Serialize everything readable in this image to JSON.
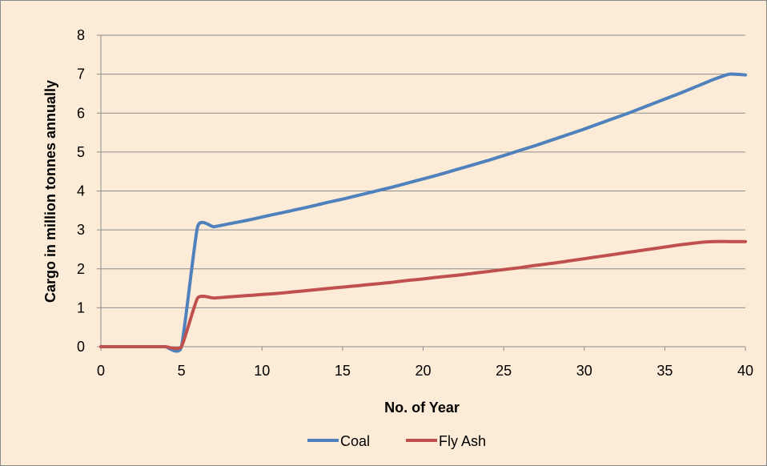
{
  "chart_data": {
    "type": "line",
    "xlabel": "No. of Year",
    "ylabel": "Cargo in million tonnes annually",
    "xlim": [
      0,
      40
    ],
    "ylim": [
      0,
      8
    ],
    "x_ticks": [
      0,
      5,
      10,
      15,
      20,
      25,
      30,
      35,
      40
    ],
    "y_ticks": [
      0,
      1,
      2,
      3,
      4,
      5,
      6,
      7,
      8
    ],
    "grid": "horizontal",
    "legend_position": "bottom",
    "series": [
      {
        "name": "Coal",
        "color": "#4f81bd",
        "points": [
          [
            0,
            0
          ],
          [
            1,
            0
          ],
          [
            2,
            0
          ],
          [
            3,
            0
          ],
          [
            4,
            0
          ],
          [
            5,
            0
          ],
          [
            6,
            3.08
          ],
          [
            7,
            3.08
          ],
          [
            8,
            3.16
          ],
          [
            9,
            3.24
          ],
          [
            10,
            3.33
          ],
          [
            11,
            3.42
          ],
          [
            12,
            3.51
          ],
          [
            13,
            3.6
          ],
          [
            14,
            3.7
          ],
          [
            15,
            3.79
          ],
          [
            16,
            3.89
          ],
          [
            17,
            3.99
          ],
          [
            18,
            4.09
          ],
          [
            19,
            4.2
          ],
          [
            20,
            4.31
          ],
          [
            21,
            4.42
          ],
          [
            22,
            4.54
          ],
          [
            23,
            4.66
          ],
          [
            24,
            4.78
          ],
          [
            25,
            4.91
          ],
          [
            26,
            5.04
          ],
          [
            27,
            5.17
          ],
          [
            28,
            5.31
          ],
          [
            29,
            5.45
          ],
          [
            30,
            5.59
          ],
          [
            31,
            5.74
          ],
          [
            32,
            5.89
          ],
          [
            33,
            6.04
          ],
          [
            34,
            6.2
          ],
          [
            35,
            6.36
          ],
          [
            36,
            6.52
          ],
          [
            37,
            6.69
          ],
          [
            38,
            6.86
          ],
          [
            39,
            7.0
          ],
          [
            40,
            6.98
          ]
        ]
      },
      {
        "name": "Fly Ash",
        "color": "#c0504d",
        "points": [
          [
            0,
            0
          ],
          [
            1,
            0
          ],
          [
            2,
            0
          ],
          [
            3,
            0
          ],
          [
            4,
            0
          ],
          [
            5,
            0
          ],
          [
            6,
            1.25
          ],
          [
            7,
            1.25
          ],
          [
            8,
            1.28
          ],
          [
            9,
            1.31
          ],
          [
            10,
            1.34
          ],
          [
            11,
            1.37
          ],
          [
            12,
            1.41
          ],
          [
            13,
            1.45
          ],
          [
            14,
            1.49
          ],
          [
            15,
            1.53
          ],
          [
            16,
            1.57
          ],
          [
            17,
            1.61
          ],
          [
            18,
            1.65
          ],
          [
            19,
            1.7
          ],
          [
            20,
            1.74
          ],
          [
            21,
            1.79
          ],
          [
            22,
            1.83
          ],
          [
            23,
            1.88
          ],
          [
            24,
            1.93
          ],
          [
            25,
            1.98
          ],
          [
            26,
            2.03
          ],
          [
            27,
            2.09
          ],
          [
            28,
            2.14
          ],
          [
            29,
            2.2
          ],
          [
            30,
            2.26
          ],
          [
            31,
            2.32
          ],
          [
            32,
            2.38
          ],
          [
            33,
            2.44
          ],
          [
            34,
            2.5
          ],
          [
            35,
            2.56
          ],
          [
            36,
            2.62
          ],
          [
            37,
            2.67
          ],
          [
            38,
            2.7
          ],
          [
            39,
            2.7
          ],
          [
            40,
            2.7
          ]
        ]
      }
    ]
  }
}
